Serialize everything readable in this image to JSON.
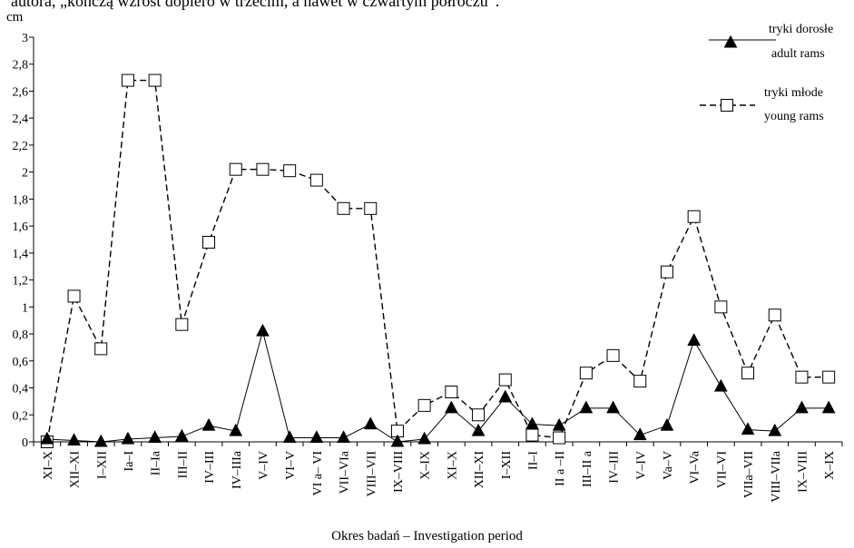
{
  "caption": "autora, „kończą wzrost dopiero w trzecim, a nawet w czwartym półroczu”.",
  "chart_data": {
    "type": "line",
    "ylabel": "cm",
    "xlabel": "Okres badań – Investigation period",
    "ylim": [
      0,
      3
    ],
    "yticks": [
      "0",
      "0,2",
      "0,4",
      "0,6",
      "0,8",
      "1",
      "1,2",
      "1,4",
      "1,6",
      "1,8",
      "2",
      "2,2",
      "2,4",
      "2,6",
      "2,8",
      "3"
    ],
    "categories": [
      "XI–X",
      "XII–XI",
      "I–XII",
      "Ia–I",
      "II–Ia",
      "III–II",
      "IV–III",
      "IV–IIIa",
      "V–IV",
      "VI–V",
      "VI a– VI",
      "VII–VIa",
      "VIII–VII",
      "IX–VIII",
      "X–IX",
      "XI–X",
      "XII–XI",
      "I–XII",
      "II–I",
      "II a –II",
      "III–II a",
      "IV–III",
      "V–IV",
      "Va–V",
      "VI–Va",
      "VII–VI",
      "VIIa–VII",
      "VIII–VIIa",
      "IX–VIII",
      "X–IX"
    ],
    "legend_position": "top-right",
    "grid": false,
    "series": [
      {
        "name_pl": "tryki dorosłe",
        "name_en": "adult rams",
        "marker": "filled-triangle",
        "line": "solid",
        "values": [
          0.02,
          0.01,
          0.0,
          0.02,
          0.03,
          0.04,
          0.12,
          0.08,
          0.82,
          0.03,
          0.03,
          0.03,
          0.13,
          0.0,
          0.02,
          0.25,
          0.08,
          0.33,
          0.13,
          0.12,
          0.25,
          0.25,
          0.05,
          0.12,
          0.75,
          0.41,
          0.09,
          0.08,
          0.25,
          0.25
        ]
      },
      {
        "name_pl": "tryki młode",
        "name_en": "young rams",
        "marker": "open-square",
        "line": "dashed",
        "values": [
          0.0,
          1.08,
          0.69,
          2.68,
          2.68,
          0.87,
          1.48,
          2.02,
          2.02,
          2.01,
          1.94,
          1.73,
          1.73,
          0.08,
          0.27,
          0.37,
          0.2,
          0.46,
          0.05,
          0.03,
          0.51,
          0.64,
          0.45,
          1.26,
          1.67,
          1.0,
          0.51,
          0.94,
          0.48,
          0.48
        ]
      }
    ]
  }
}
